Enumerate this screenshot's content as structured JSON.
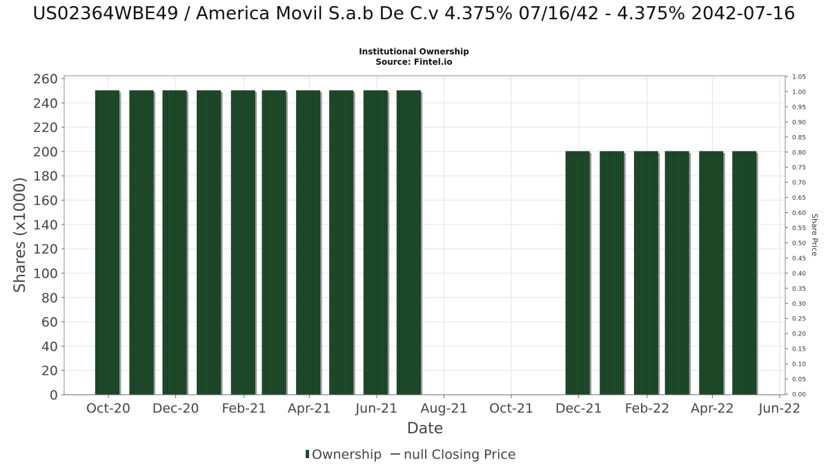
{
  "chart_data": {
    "type": "bar",
    "title": "US02364WBE49 / America Movil S.a.b De C.v 4.375% 07/16/42 - 4.375% 2042-07-16",
    "subtitle_lines": [
      "Institutional Ownership",
      "Source: Fintel.io"
    ],
    "xlabel": "Date",
    "ylabel": "Shares (x1000)",
    "y2label": "Share Price",
    "ylim": [
      0,
      260
    ],
    "y_ticks": [
      0,
      20,
      40,
      60,
      80,
      100,
      120,
      140,
      160,
      180,
      200,
      220,
      240,
      260
    ],
    "y2lim": [
      0,
      1.05
    ],
    "y2_ticks": [
      "0.00",
      "0.05",
      "0.10",
      "0.15",
      "0.20",
      "0.25",
      "0.30",
      "0.35",
      "0.40",
      "0.45",
      "0.50",
      "0.55",
      "0.60",
      "0.65",
      "0.70",
      "0.75",
      "0.80",
      "0.85",
      "0.90",
      "0.95",
      "1.00",
      "1.05"
    ],
    "x_ticks": [
      "Oct-20",
      "Dec-20",
      "Feb-21",
      "Apr-21",
      "Jun-21",
      "Aug-21",
      "Oct-21",
      "Dec-21",
      "Feb-22",
      "Apr-22",
      "Jun-22"
    ],
    "grid": true,
    "legend_position": "bottom-center",
    "series": [
      {
        "name": "Ownership",
        "color": "#1f4d2b",
        "dates": [
          "2020-09-30",
          "2020-10-31",
          "2020-11-30",
          "2020-12-31",
          "2021-01-31",
          "2021-02-28",
          "2021-03-31",
          "2021-04-30",
          "2021-05-31",
          "2021-06-30",
          "2021-11-30",
          "2021-12-31",
          "2022-01-31",
          "2022-02-28",
          "2022-03-31",
          "2022-04-30"
        ],
        "values": [
          250,
          250,
          250,
          250,
          250,
          250,
          250,
          250,
          250,
          250,
          200,
          200,
          200,
          200,
          200,
          200
        ]
      },
      {
        "name": "null Closing Price",
        "color": "#555555",
        "values": []
      }
    ]
  }
}
